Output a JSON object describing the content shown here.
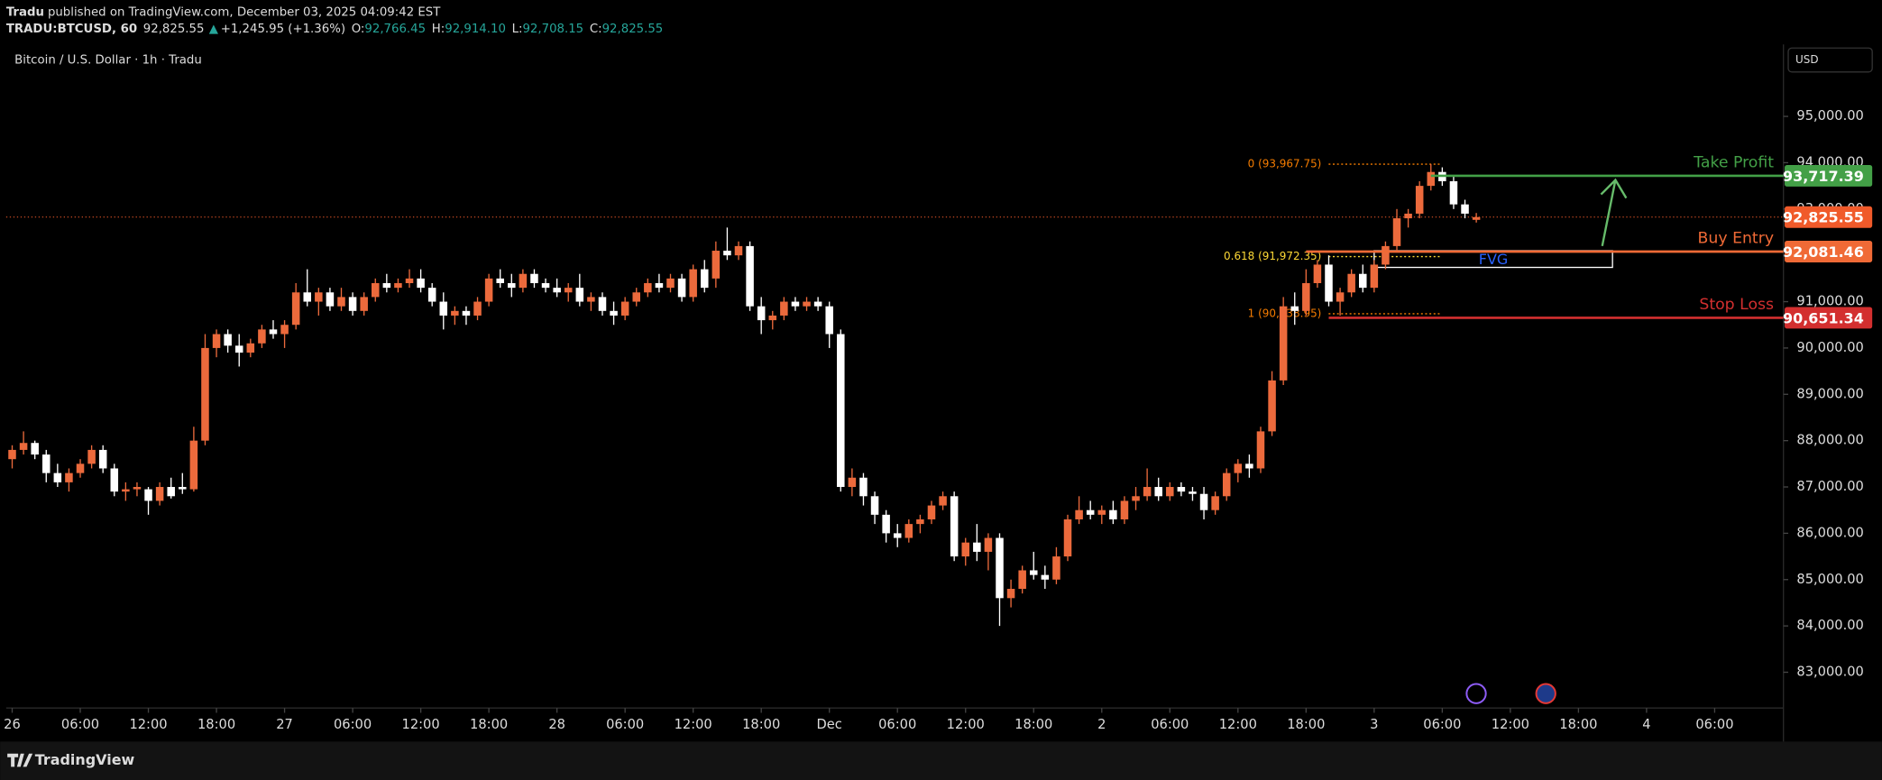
{
  "chart_data": {
    "type": "candlestick",
    "publisher": "Tradu",
    "published": "published on TradingView.com, December 03, 2025 04:09:42 EST",
    "symbol": "TRADU:BTCUSD, 60",
    "last": "92,825.55",
    "change": "+1,245.95 (+1.36%)",
    "quote": [
      {
        "key": "O:",
        "value": "92,766.45"
      },
      {
        "key": "H:",
        "value": "92,914.10"
      },
      {
        "key": "L:",
        "value": "92,708.15"
      },
      {
        "key": "C:",
        "value": "92,825.55"
      }
    ],
    "title": "Bitcoin / U.S. Dollar · 1h · Tradu",
    "currency": "USD",
    "brand": "TradingView",
    "up_color": "#ec6a3c",
    "down_color": "#ffffff",
    "ylim": [
      82228,
      96554
    ],
    "xlim": [
      -0.53,
      156.06
    ],
    "yticks": [
      {
        "value": 83000,
        "label": "83,000.00"
      },
      {
        "value": 84000,
        "label": "84,000.00"
      },
      {
        "value": 85000,
        "label": "85,000.00"
      },
      {
        "value": 86000,
        "label": "86,000.00"
      },
      {
        "value": 87000,
        "label": "87,000.00"
      },
      {
        "value": 88000,
        "label": "88,000.00"
      },
      {
        "value": 89000,
        "label": "89,000.00"
      },
      {
        "value": 90000,
        "label": "90,000.00"
      },
      {
        "value": 91000,
        "label": "91,000.00"
      },
      {
        "value": 92000,
        "label": "92,000.00"
      },
      {
        "value": 93000,
        "label": "93,000.00"
      },
      {
        "value": 94000,
        "label": "94,000.00"
      },
      {
        "value": 95000,
        "label": "95,000.00"
      }
    ],
    "xticks": [
      {
        "value": 0,
        "label": "26"
      },
      {
        "value": 6,
        "label": "06:00"
      },
      {
        "value": 12,
        "label": "12:00"
      },
      {
        "value": 18,
        "label": "18:00"
      },
      {
        "value": 24,
        "label": "27"
      },
      {
        "value": 30,
        "label": "06:00"
      },
      {
        "value": 36,
        "label": "12:00"
      },
      {
        "value": 42,
        "label": "18:00"
      },
      {
        "value": 48,
        "label": "28"
      },
      {
        "value": 54,
        "label": "06:00"
      },
      {
        "value": 60,
        "label": "12:00"
      },
      {
        "value": 66,
        "label": "18:00"
      },
      {
        "value": 72,
        "label": "Dec"
      },
      {
        "value": 78,
        "label": "06:00"
      },
      {
        "value": 84,
        "label": "12:00"
      },
      {
        "value": 90,
        "label": "18:00"
      },
      {
        "value": 96,
        "label": "2"
      },
      {
        "value": 102,
        "label": "06:00"
      },
      {
        "value": 108,
        "label": "12:00"
      },
      {
        "value": 114,
        "label": "18:00"
      },
      {
        "value": 120,
        "label": "3"
      },
      {
        "value": 126,
        "label": "06:00"
      },
      {
        "value": 132,
        "label": "12:00"
      },
      {
        "value": 138,
        "label": "18:00"
      },
      {
        "value": 144,
        "label": "4"
      },
      {
        "value": 150,
        "label": "06:00"
      }
    ],
    "ohlc": [
      [
        87600,
        87900,
        87400,
        87800
      ],
      [
        87800,
        88200,
        87700,
        87950
      ],
      [
        87950,
        88000,
        87600,
        87700
      ],
      [
        87700,
        87800,
        87100,
        87300
      ],
      [
        87300,
        87500,
        87000,
        87100
      ],
      [
        87100,
        87400,
        86900,
        87300
      ],
      [
        87300,
        87600,
        87200,
        87500
      ],
      [
        87500,
        87900,
        87400,
        87800
      ],
      [
        87800,
        87900,
        87300,
        87400
      ],
      [
        87400,
        87500,
        86800,
        86900
      ],
      [
        86900,
        87100,
        86700,
        86950
      ],
      [
        86950,
        87100,
        86800,
        87000
      ],
      [
        86950,
        87000,
        86400,
        86700
      ],
      [
        86700,
        87100,
        86600,
        87000
      ],
      [
        87000,
        87200,
        86750,
        86800
      ],
      [
        87000,
        87300,
        86850,
        86950
      ],
      [
        86950,
        88300,
        86900,
        88000
      ],
      [
        88000,
        90300,
        87900,
        90000
      ],
      [
        90000,
        90400,
        89800,
        90300
      ],
      [
        90300,
        90400,
        89900,
        90050
      ],
      [
        90050,
        90300,
        89600,
        89900
      ],
      [
        89900,
        90200,
        89800,
        90100
      ],
      [
        90100,
        90500,
        90000,
        90400
      ],
      [
        90400,
        90600,
        90200,
        90300
      ],
      [
        90300,
        90600,
        90000,
        90500
      ],
      [
        90500,
        91400,
        90400,
        91200
      ],
      [
        91200,
        91700,
        90900,
        91000
      ],
      [
        91000,
        91300,
        90700,
        91200
      ],
      [
        91200,
        91300,
        90800,
        90900
      ],
      [
        90900,
        91300,
        90800,
        91100
      ],
      [
        91100,
        91200,
        90700,
        90800
      ],
      [
        90800,
        91200,
        90700,
        91100
      ],
      [
        91100,
        91500,
        91000,
        91400
      ],
      [
        91400,
        91600,
        91200,
        91300
      ],
      [
        91300,
        91500,
        91200,
        91400
      ],
      [
        91400,
        91700,
        91300,
        91500
      ],
      [
        91500,
        91700,
        91200,
        91300
      ],
      [
        91300,
        91400,
        90900,
        91000
      ],
      [
        91000,
        91200,
        90400,
        90700
      ],
      [
        90700,
        90900,
        90500,
        90800
      ],
      [
        90800,
        90900,
        90500,
        90700
      ],
      [
        90700,
        91100,
        90600,
        91000
      ],
      [
        91000,
        91600,
        90900,
        91500
      ],
      [
        91500,
        91700,
        91300,
        91400
      ],
      [
        91400,
        91600,
        91100,
        91300
      ],
      [
        91300,
        91700,
        91200,
        91600
      ],
      [
        91600,
        91700,
        91300,
        91400
      ],
      [
        91400,
        91500,
        91200,
        91300
      ],
      [
        91300,
        91500,
        91100,
        91200
      ],
      [
        91200,
        91400,
        91000,
        91300
      ],
      [
        91300,
        91600,
        90900,
        91000
      ],
      [
        91000,
        91200,
        90800,
        91100
      ],
      [
        91100,
        91200,
        90700,
        90800
      ],
      [
        90800,
        91000,
        90500,
        90700
      ],
      [
        90700,
        91100,
        90600,
        91000
      ],
      [
        91000,
        91300,
        90900,
        91200
      ],
      [
        91200,
        91500,
        91100,
        91400
      ],
      [
        91400,
        91600,
        91200,
        91300
      ],
      [
        91300,
        91600,
        91200,
        91500
      ],
      [
        91500,
        91600,
        91000,
        91100
      ],
      [
        91100,
        91800,
        91000,
        91700
      ],
      [
        91700,
        91900,
        91200,
        91300
      ],
      [
        91500,
        92300,
        91300,
        92100
      ],
      [
        92100,
        92600,
        91900,
        92000
      ],
      [
        92000,
        92300,
        91900,
        92200
      ],
      [
        92200,
        92300,
        90800,
        90900
      ],
      [
        90900,
        91100,
        90300,
        90600
      ],
      [
        90600,
        90800,
        90400,
        90700
      ],
      [
        90700,
        91100,
        90600,
        91000
      ],
      [
        91000,
        91100,
        90800,
        90900
      ],
      [
        90900,
        91100,
        90800,
        91000
      ],
      [
        91000,
        91100,
        90800,
        90900
      ],
      [
        90900,
        91000,
        90000,
        90300
      ],
      [
        90300,
        90400,
        86900,
        87000
      ],
      [
        87000,
        87400,
        86800,
        87200
      ],
      [
        87200,
        87300,
        86600,
        86800
      ],
      [
        86800,
        86900,
        86200,
        86400
      ],
      [
        86400,
        86500,
        85800,
        86000
      ],
      [
        86000,
        86200,
        85700,
        85900
      ],
      [
        85900,
        86300,
        85800,
        86200
      ],
      [
        86200,
        86400,
        86000,
        86300
      ],
      [
        86300,
        86700,
        86200,
        86600
      ],
      [
        86600,
        86900,
        86500,
        86800
      ],
      [
        86800,
        86900,
        85400,
        85500
      ],
      [
        85500,
        85900,
        85300,
        85800
      ],
      [
        85800,
        86200,
        85400,
        85600
      ],
      [
        85600,
        86000,
        85200,
        85900
      ],
      [
        85900,
        86000,
        84000,
        84600
      ],
      [
        84600,
        85000,
        84400,
        84800
      ],
      [
        84800,
        85300,
        84700,
        85200
      ],
      [
        85200,
        85600,
        85000,
        85100
      ],
      [
        85100,
        85300,
        84800,
        85000
      ],
      [
        85000,
        85700,
        84900,
        85500
      ],
      [
        85500,
        86400,
        85400,
        86300
      ],
      [
        86300,
        86800,
        86200,
        86500
      ],
      [
        86500,
        86700,
        86300,
        86400
      ],
      [
        86400,
        86600,
        86200,
        86500
      ],
      [
        86500,
        86700,
        86200,
        86300
      ],
      [
        86300,
        86800,
        86200,
        86700
      ],
      [
        86700,
        87000,
        86500,
        86800
      ],
      [
        86800,
        87400,
        86700,
        87000
      ],
      [
        87000,
        87200,
        86700,
        86800
      ],
      [
        86800,
        87100,
        86700,
        87000
      ],
      [
        87000,
        87100,
        86800,
        86900
      ],
      [
        86900,
        87000,
        86700,
        86850
      ],
      [
        86850,
        87000,
        86300,
        86500
      ],
      [
        86500,
        86900,
        86400,
        86800
      ],
      [
        86800,
        87400,
        86700,
        87300
      ],
      [
        87300,
        87600,
        87100,
        87500
      ],
      [
        87500,
        87700,
        87200,
        87400
      ],
      [
        87400,
        88300,
        87300,
        88200
      ],
      [
        88200,
        89500,
        88100,
        89300
      ],
      [
        89300,
        91100,
        89200,
        90900
      ],
      [
        90900,
        91200,
        90500,
        90800
      ],
      [
        90800,
        91700,
        90700,
        91400
      ],
      [
        91400,
        91900,
        91300,
        91800
      ],
      [
        91800,
        92000,
        90900,
        91000
      ],
      [
        91000,
        91300,
        90700,
        91200
      ],
      [
        91200,
        91700,
        91100,
        91600
      ],
      [
        91600,
        91800,
        91200,
        91300
      ],
      [
        91300,
        91900,
        91200,
        91800
      ],
      [
        91800,
        92300,
        91700,
        92200
      ],
      [
        92200,
        93000,
        92100,
        92800
      ],
      [
        92800,
        93000,
        92600,
        92900
      ],
      [
        92900,
        93600,
        92800,
        93500
      ],
      [
        93500,
        93968,
        93400,
        93800
      ],
      [
        93800,
        93900,
        93500,
        93600
      ],
      [
        93600,
        93700,
        93000,
        93100
      ],
      [
        93100,
        93200,
        92800,
        92900
      ],
      [
        92766.45,
        92914.1,
        92708.15,
        92825.55
      ]
    ],
    "levels": [
      {
        "label": "Take Profit",
        "value": 93717.39,
        "value_label": "93,717.39",
        "color": "#43a047",
        "start": 125
      },
      {
        "label": "Buy Entry",
        "value": 92081.46,
        "value_label": "92,081.46",
        "color": "#f06a36",
        "start": 114
      },
      {
        "label": "Stop Loss",
        "value": 90651.34,
        "value_label": "90,651.34",
        "color": "#d32f2f",
        "start": 116
      }
    ],
    "current": {
      "value": 92825.55,
      "value_label": "92,825.55",
      "color": "#f05a2a"
    },
    "fib": [
      {
        "label": "0 (93,967.75)",
        "value": 93967.75,
        "color": "#f57c00"
      },
      {
        "label": "0.618 (91,972.35)",
        "value": 91972.35,
        "color": "#fdd835"
      },
      {
        "label": "1 (90,738.95)",
        "value": 90738.95,
        "color": "#f57c00"
      }
    ],
    "fvg": {
      "label": "FVG",
      "high": 92100,
      "low": 91740,
      "start": 120,
      "end": 141,
      "color": "#2962ff"
    }
  }
}
